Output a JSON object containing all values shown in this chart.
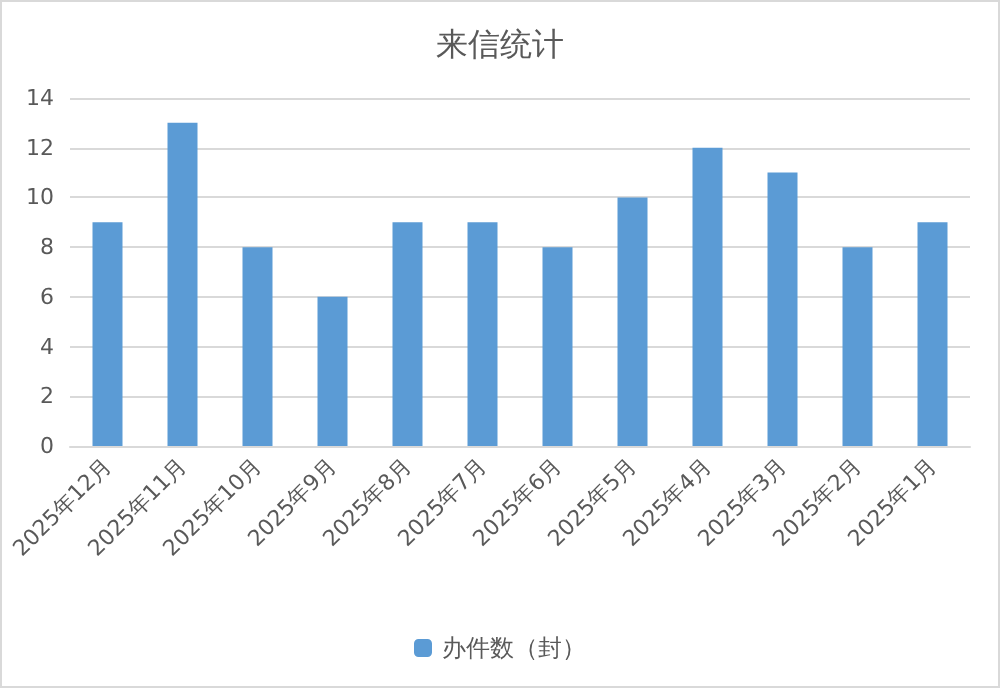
{
  "chart_data": {
    "type": "bar",
    "title": "来信统计",
    "categories": [
      "2025年12月",
      "2025年11月",
      "2025年10月",
      "2025年9月",
      "2025年8月",
      "2025年7月",
      "2025年6月",
      "2025年5月",
      "2025年4月",
      "2025年3月",
      "2025年2月",
      "2025年1月"
    ],
    "series": [
      {
        "name": "办件数（封）",
        "color": "#5b9bd5",
        "values": [
          9,
          13,
          8,
          6,
          9,
          9,
          8,
          10,
          12,
          11,
          8,
          9
        ]
      }
    ],
    "ylim": [
      0,
      14
    ],
    "yticks": [
      0,
      2,
      4,
      6,
      8,
      10,
      12,
      14
    ],
    "grid": "y",
    "legend": "bottom"
  }
}
